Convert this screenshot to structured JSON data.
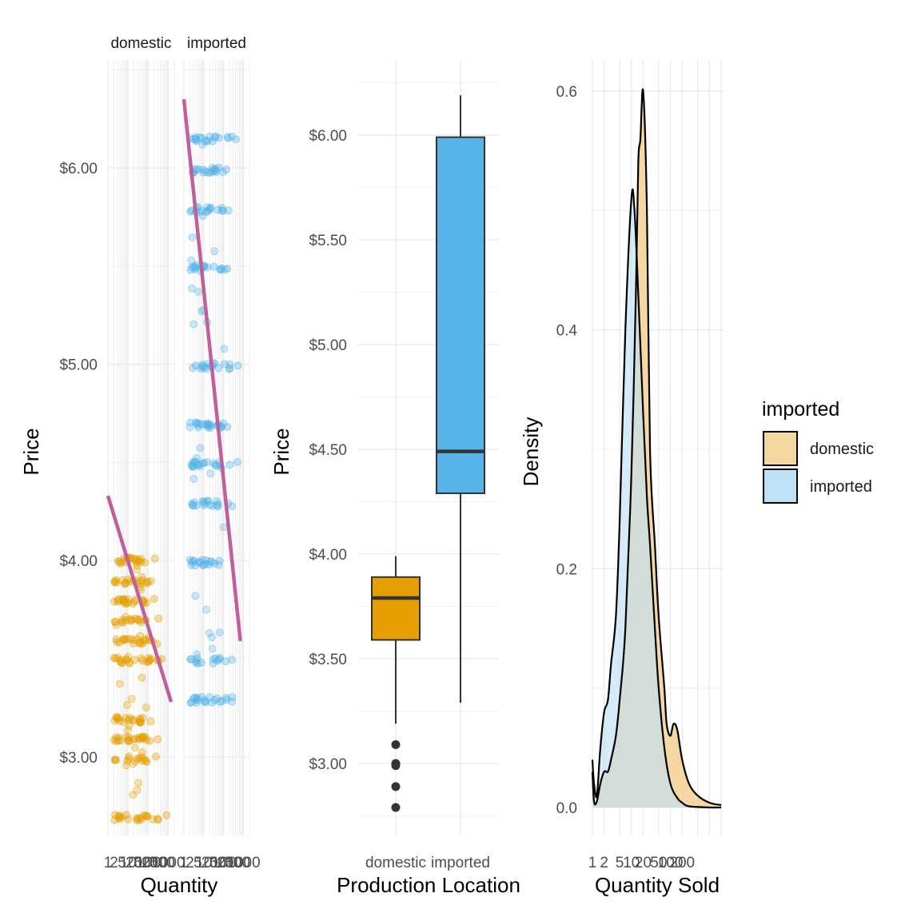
{
  "chart_data": [
    {
      "type": "scatter",
      "xlabel": "Quantity",
      "ylabel": "Price",
      "x_scale": "log10",
      "xlim": [
        1,
        2000
      ],
      "ylim": [
        2.6,
        6.55
      ],
      "x_ticks": [
        "1",
        "2",
        "5",
        "10",
        "20",
        "50",
        "100",
        "200",
        "500",
        "1000"
      ],
      "y_ticks": [
        {
          "value": 3.0,
          "label": "$3.00"
        },
        {
          "value": 4.0,
          "label": "$4.00"
        },
        {
          "value": 5.0,
          "label": "$5.00"
        },
        {
          "value": 6.0,
          "label": "$6.00"
        }
      ],
      "grid": true,
      "facets": [
        {
          "label": "domestic",
          "color": "#E69F00",
          "fit_line": {
            "x": [
              1,
              1400
            ],
            "y": [
              4.33,
              3.28
            ]
          },
          "price_levels": [
            4.0,
            3.89,
            3.79,
            3.69,
            3.59,
            3.49,
            3.19,
            3.09,
            2.99,
            2.69
          ],
          "quantity_range": [
            1,
            1000
          ]
        },
        {
          "label": "imported",
          "color": "#56B4E9",
          "fit_line": {
            "x": [
              1,
              700
            ],
            "y": [
              6.35,
              3.59
            ]
          },
          "price_levels": [
            6.15,
            5.99,
            5.79,
            5.49,
            4.99,
            4.69,
            4.49,
            4.29,
            3.99,
            3.49,
            3.29
          ],
          "quantity_range": [
            1,
            700
          ]
        }
      ],
      "fit_color": "#C0609A"
    },
    {
      "type": "box",
      "xlabel": "Production Location",
      "ylabel": "Price",
      "ylim": [
        2.75,
        6.3
      ],
      "y_ticks": [
        {
          "value": 3.0,
          "label": "$3.00"
        },
        {
          "value": 3.5,
          "label": "$3.50"
        },
        {
          "value": 4.0,
          "label": "$4.00"
        },
        {
          "value": 4.5,
          "label": "$4.50"
        },
        {
          "value": 5.0,
          "label": "$5.00"
        },
        {
          "value": 5.5,
          "label": "$5.50"
        },
        {
          "value": 6.0,
          "label": "$6.00"
        }
      ],
      "categories": [
        "domestic",
        "imported"
      ],
      "boxes": [
        {
          "category": "domestic",
          "color": "#E69F00",
          "min": 3.19,
          "q1": 3.59,
          "median": 3.79,
          "q3": 3.89,
          "max": 3.99,
          "outliers": [
            3.09,
            3.0,
            2.99,
            2.89,
            2.79
          ]
        },
        {
          "category": "imported",
          "color": "#56B4E9",
          "min": 3.29,
          "q1": 4.29,
          "median": 4.49,
          "q3": 5.99,
          "max": 6.19,
          "outliers": []
        }
      ]
    },
    {
      "type": "area",
      "xlabel": "Quantity Sold",
      "ylabel": "Density",
      "x_scale": "log10",
      "xlim": [
        1,
        2000
      ],
      "ylim": [
        0,
        0.6
      ],
      "x_ticks": [
        "1",
        "2",
        "5",
        "10",
        "20",
        "50",
        "100",
        "200"
      ],
      "y_ticks": [
        "0.0",
        "0.2",
        "0.4",
        "0.6"
      ],
      "legend": {
        "title": "imported",
        "position": "right",
        "entries": [
          "domestic",
          "imported"
        ]
      },
      "series": [
        {
          "name": "domestic",
          "color": "#F5D7A3",
          "x": [
            1,
            1.1,
            1.3,
            1.6,
            2,
            2.5,
            3,
            4,
            5,
            7,
            10,
            13,
            15,
            17,
            20,
            25,
            30,
            40,
            50,
            70,
            80,
            100,
            120,
            150,
            200,
            300,
            500,
            1000,
            2000
          ],
          "y": [
            0.03,
            0.005,
            0.005,
            0.02,
            0.03,
            0.03,
            0.04,
            0.06,
            0.09,
            0.15,
            0.28,
            0.43,
            0.54,
            0.56,
            0.6,
            0.5,
            0.3,
            0.22,
            0.16,
            0.1,
            0.07,
            0.06,
            0.07,
            0.065,
            0.04,
            0.02,
            0.01,
            0.004,
            0.002
          ]
        },
        {
          "name": "imported",
          "color": "#BEE1F5",
          "x": [
            1,
            1.1,
            1.3,
            1.6,
            2,
            2.5,
            3,
            4,
            5,
            7,
            10,
            12,
            15,
            20,
            25,
            30,
            40,
            50,
            70,
            100,
            150,
            200,
            300,
            1000,
            2000
          ],
          "y": [
            0.04,
            0.02,
            0.01,
            0.05,
            0.08,
            0.09,
            0.12,
            0.16,
            0.24,
            0.4,
            0.51,
            0.5,
            0.43,
            0.33,
            0.26,
            0.22,
            0.15,
            0.1,
            0.05,
            0.02,
            0.008,
            0.004,
            0.001,
            0.0,
            0.0
          ]
        }
      ]
    }
  ]
}
